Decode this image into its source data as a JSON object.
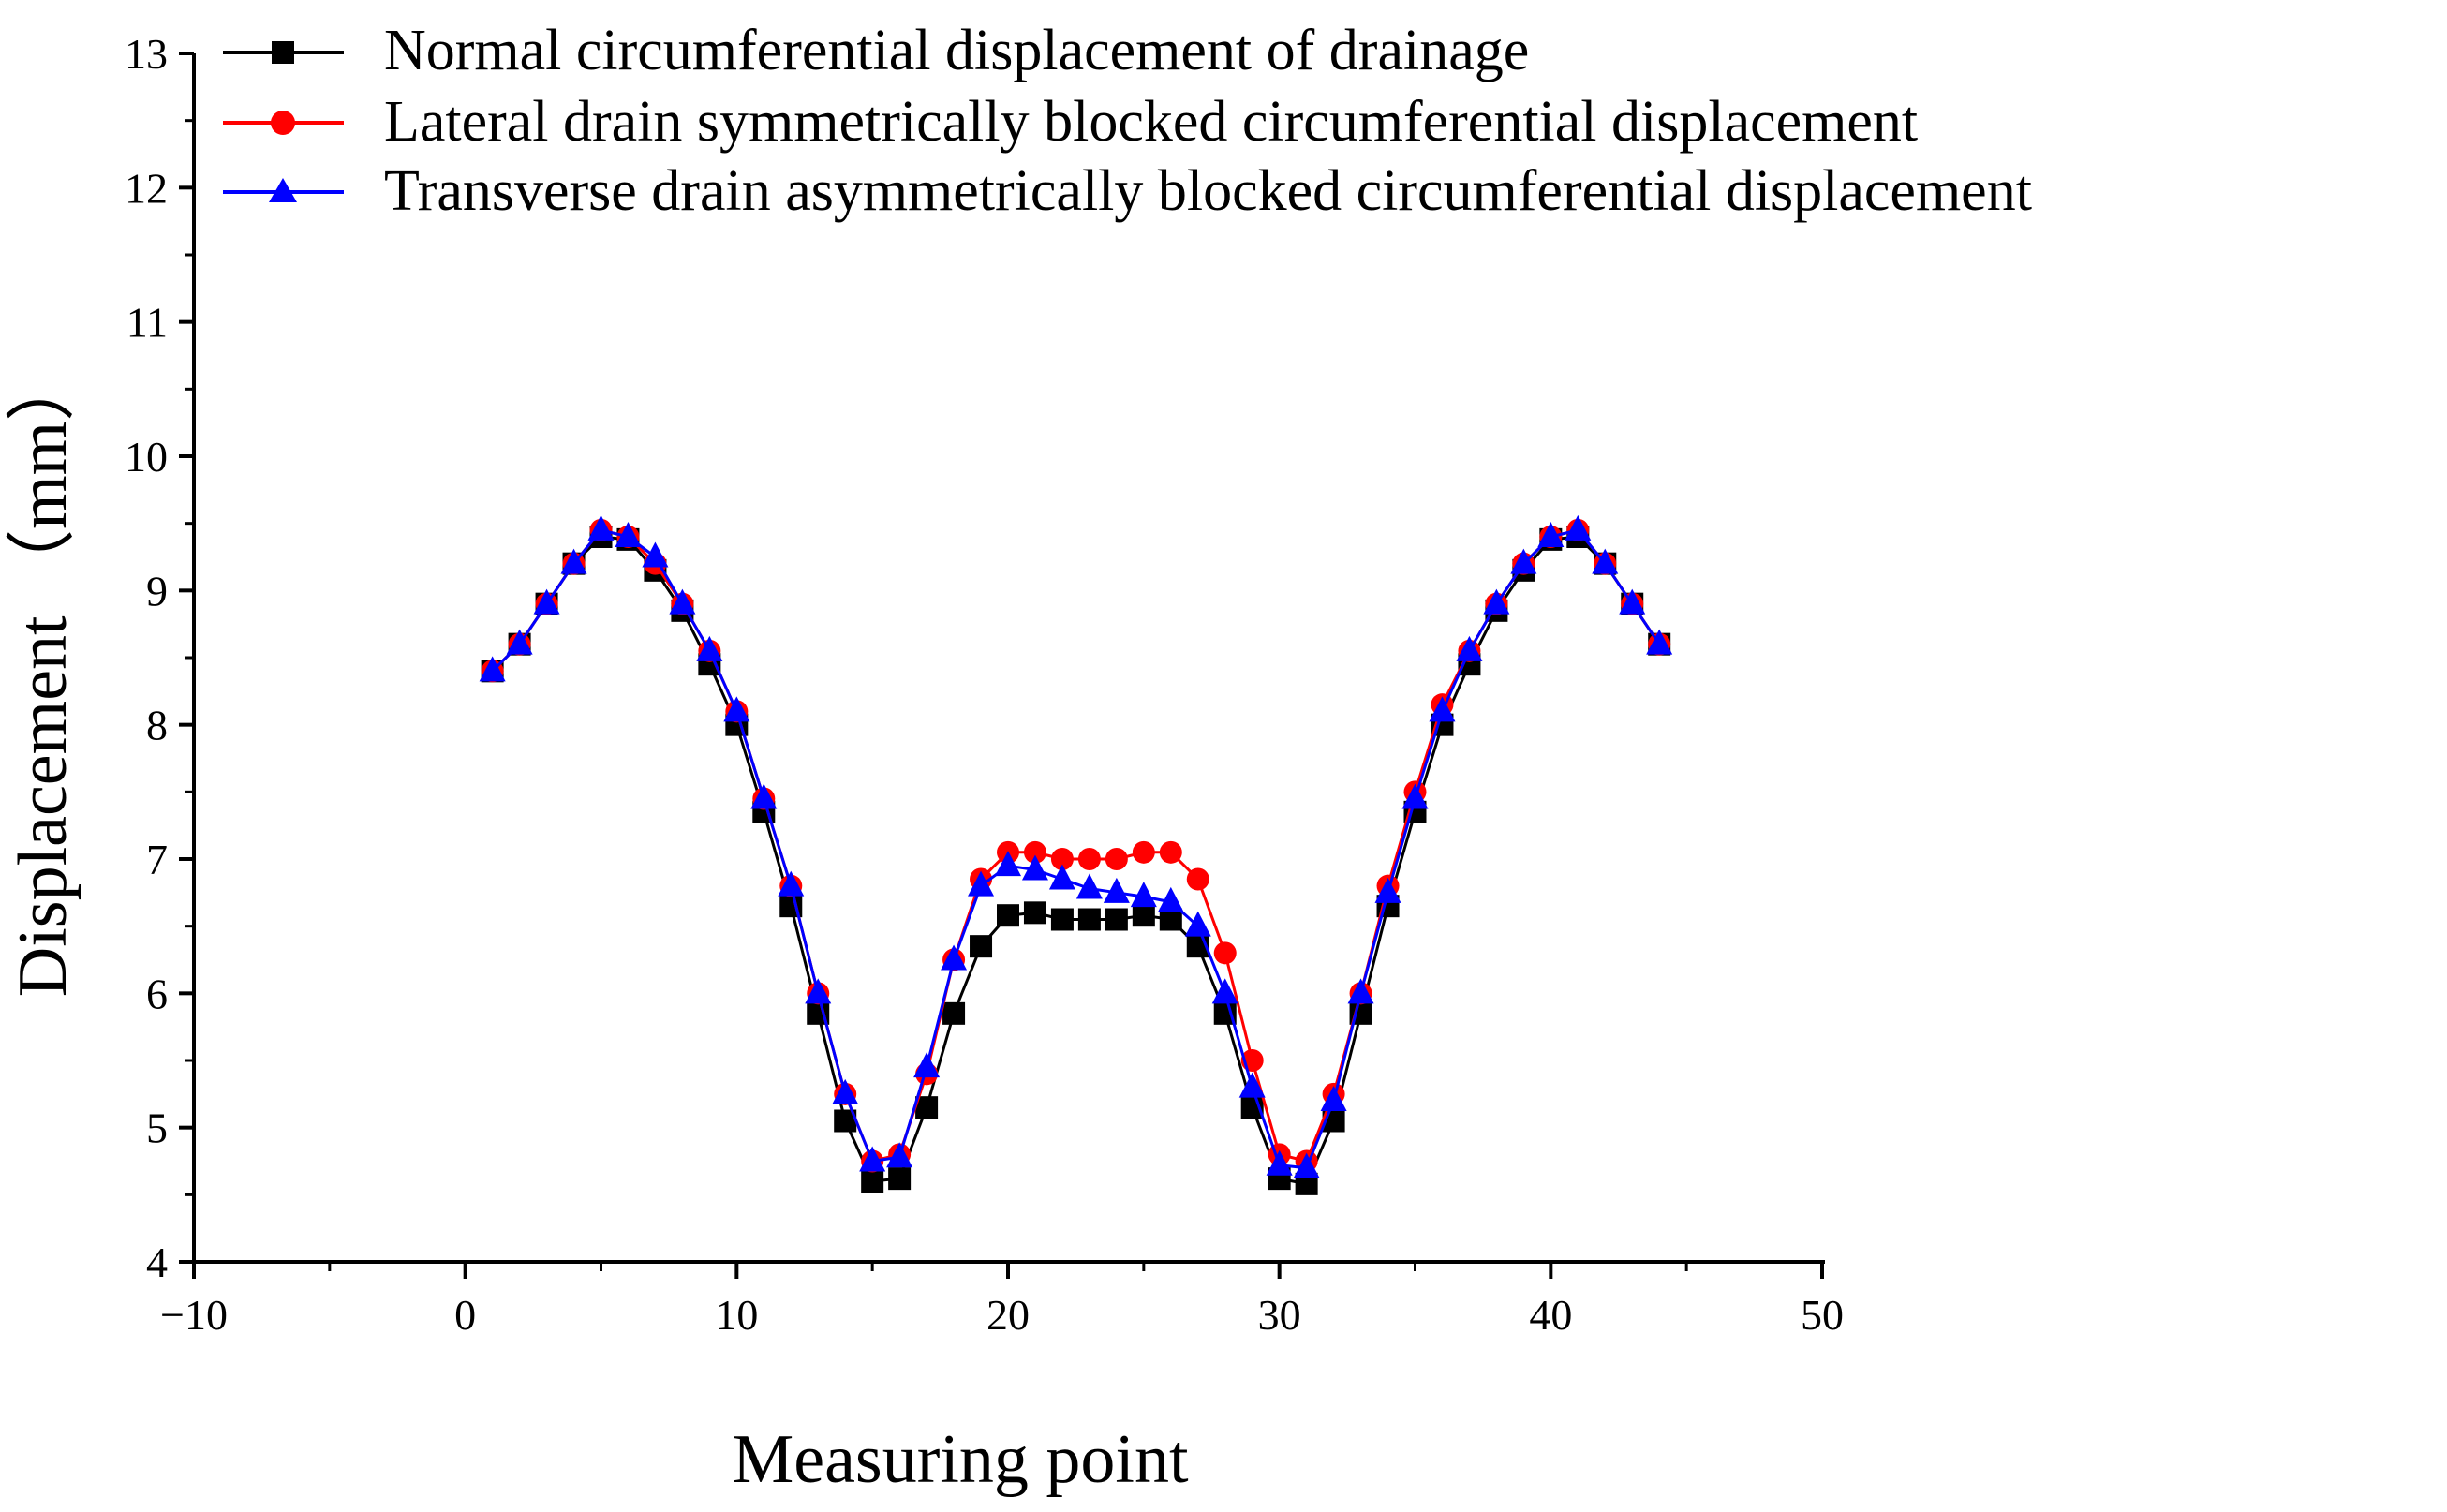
{
  "chart_data": {
    "type": "line",
    "title": "",
    "xlabel": "Measuring point",
    "ylabel": "Displacement （mm）",
    "xlim": [
      -10,
      50
    ],
    "ylim": [
      4,
      13
    ],
    "xticks": [
      -10,
      0,
      10,
      20,
      30,
      40,
      50
    ],
    "xtick_labels": [
      "−10",
      "0",
      "10",
      "20",
      "30",
      "40",
      "50"
    ],
    "yticks": [
      4,
      5,
      6,
      7,
      8,
      9,
      10,
      11,
      12,
      13
    ],
    "ytick_labels": [
      "4",
      "5",
      "6",
      "7",
      "8",
      "9",
      "10",
      "11",
      "12",
      "13"
    ],
    "legend_position": "top-left",
    "x": [
      1,
      2,
      3,
      4,
      5,
      6,
      7,
      8,
      9,
      10,
      11,
      12,
      13,
      14,
      15,
      16,
      17,
      18,
      19,
      20,
      21,
      22,
      23,
      24,
      25,
      26,
      27,
      28,
      29,
      30,
      31,
      32,
      33,
      34,
      35,
      36,
      37,
      38,
      39,
      40,
      41,
      42,
      43,
      44
    ],
    "series": [
      {
        "name": "Normal circumferential displacement of drainage",
        "color": "#000000",
        "marker": "square",
        "values": [
          8.4,
          8.6,
          8.9,
          9.2,
          9.4,
          9.38,
          9.15,
          8.85,
          8.45,
          8.0,
          7.35,
          6.65,
          5.85,
          5.05,
          4.6,
          4.62,
          5.15,
          5.85,
          6.35,
          6.58,
          6.6,
          6.55,
          6.55,
          6.55,
          6.58,
          6.55,
          6.35,
          5.85,
          5.15,
          4.62,
          4.58,
          5.05,
          5.85,
          6.65,
          7.35,
          8.0,
          8.45,
          8.85,
          9.15,
          9.38,
          9.4,
          9.2,
          8.9,
          8.6
        ]
      },
      {
        "name": "Lateral drain symmetrically blocked circumferential displacement",
        "color": "#ff0000",
        "marker": "circle",
        "values": [
          8.4,
          8.6,
          8.9,
          9.2,
          9.45,
          9.4,
          9.2,
          8.9,
          8.55,
          8.1,
          7.45,
          6.8,
          6.0,
          5.25,
          4.75,
          4.8,
          5.4,
          6.25,
          6.85,
          7.05,
          7.05,
          7.0,
          7.0,
          7.0,
          7.05,
          7.05,
          6.85,
          6.3,
          5.5,
          4.8,
          4.75,
          5.25,
          6.0,
          6.8,
          7.5,
          8.15,
          8.55,
          8.9,
          9.2,
          9.4,
          9.45,
          9.2,
          8.9,
          8.6
        ]
      },
      {
        "name": "Transverse drain asymmetrically blocked circumferential displacement",
        "color": "#0000ff",
        "marker": "triangle",
        "values": [
          8.4,
          8.6,
          8.9,
          9.2,
          9.45,
          9.4,
          9.25,
          8.9,
          8.55,
          8.1,
          7.45,
          6.8,
          6.0,
          5.25,
          4.75,
          4.78,
          5.45,
          6.25,
          6.8,
          6.95,
          6.92,
          6.85,
          6.78,
          6.75,
          6.72,
          6.68,
          6.5,
          6.0,
          5.3,
          4.72,
          4.7,
          5.2,
          6.0,
          6.75,
          7.45,
          8.1,
          8.55,
          8.9,
          9.2,
          9.4,
          9.45,
          9.2,
          8.9,
          8.6
        ]
      }
    ]
  }
}
